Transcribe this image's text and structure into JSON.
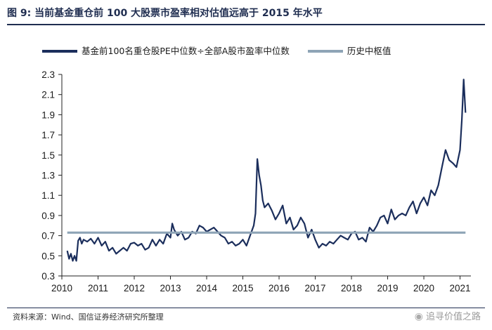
{
  "figure": {
    "title": "图  9:  当前基金重仓前 100 大股票市盈率相对估值远高于 2015 年水平",
    "source": "资料来源：Wind、国信证券经济研究所整理",
    "watermark": "追寻价值之路"
  },
  "chart_data": {
    "type": "line",
    "title": "图  9:  当前基金重仓前 100 大股票市盈率相对估值远高于 2015 年水平",
    "xlabel": "",
    "ylabel": "",
    "xlim": [
      2010,
      2021.3
    ],
    "ylim": [
      0.3,
      2.3
    ],
    "x_ticks": [
      "2010",
      "2011",
      "2012",
      "2013",
      "2014",
      "2015",
      "2016",
      "2017",
      "2018",
      "2019",
      "2020",
      "2021"
    ],
    "y_ticks": [
      "0.3",
      "0.5",
      "0.7",
      "0.9",
      "1.1",
      "1.3",
      "1.5",
      "1.7",
      "1.9",
      "2.1",
      "2.3"
    ],
    "grid": false,
    "legend_position": "top",
    "colors": {
      "ratio": "#1b2e5c",
      "median": "#8ea4b6"
    },
    "series": [
      {
        "name": "基金前100名重仓股PE中位数÷全部A股市盈率中位数",
        "x": [
          2010.15,
          2010.2,
          2010.25,
          2010.3,
          2010.35,
          2010.4,
          2010.45,
          2010.5,
          2010.55,
          2010.6,
          2010.7,
          2010.8,
          2010.9,
          2011.0,
          2011.1,
          2011.2,
          2011.3,
          2011.4,
          2011.5,
          2011.6,
          2011.7,
          2011.8,
          2011.9,
          2012.0,
          2012.1,
          2012.2,
          2012.3,
          2012.4,
          2012.5,
          2012.6,
          2012.7,
          2012.8,
          2012.9,
          2013.0,
          2013.05,
          2013.1,
          2013.2,
          2013.3,
          2013.4,
          2013.5,
          2013.6,
          2013.7,
          2013.8,
          2013.9,
          2014.0,
          2014.1,
          2014.2,
          2014.3,
          2014.4,
          2014.5,
          2014.6,
          2014.7,
          2014.8,
          2014.9,
          2015.0,
          2015.1,
          2015.2,
          2015.3,
          2015.35,
          2015.4,
          2015.45,
          2015.5,
          2015.55,
          2015.6,
          2015.7,
          2015.8,
          2015.9,
          2016.0,
          2016.1,
          2016.2,
          2016.3,
          2016.4,
          2016.5,
          2016.6,
          2016.7,
          2016.8,
          2016.9,
          2017.0,
          2017.1,
          2017.2,
          2017.3,
          2017.4,
          2017.5,
          2017.6,
          2017.7,
          2017.8,
          2017.9,
          2018.0,
          2018.1,
          2018.2,
          2018.3,
          2018.4,
          2018.5,
          2018.6,
          2018.7,
          2018.8,
          2018.9,
          2019.0,
          2019.1,
          2019.2,
          2019.3,
          2019.4,
          2019.5,
          2019.6,
          2019.7,
          2019.8,
          2019.9,
          2020.0,
          2020.1,
          2020.2,
          2020.3,
          2020.4,
          2020.5,
          2020.6,
          2020.7,
          2020.8,
          2020.9,
          2021.0,
          2021.05,
          2021.1,
          2021.15
        ],
        "values": [
          0.55,
          0.47,
          0.52,
          0.45,
          0.5,
          0.45,
          0.65,
          0.68,
          0.62,
          0.66,
          0.64,
          0.67,
          0.62,
          0.68,
          0.6,
          0.64,
          0.55,
          0.58,
          0.52,
          0.55,
          0.58,
          0.55,
          0.62,
          0.63,
          0.6,
          0.62,
          0.56,
          0.58,
          0.66,
          0.6,
          0.66,
          0.62,
          0.72,
          0.68,
          0.82,
          0.76,
          0.7,
          0.74,
          0.66,
          0.68,
          0.74,
          0.72,
          0.8,
          0.78,
          0.74,
          0.76,
          0.78,
          0.74,
          0.7,
          0.68,
          0.62,
          0.64,
          0.6,
          0.62,
          0.66,
          0.6,
          0.7,
          0.8,
          0.92,
          1.46,
          1.3,
          1.2,
          1.05,
          0.98,
          1.02,
          0.95,
          0.86,
          0.92,
          1.0,
          0.82,
          0.88,
          0.76,
          0.8,
          0.88,
          0.82,
          0.68,
          0.76,
          0.66,
          0.58,
          0.62,
          0.6,
          0.64,
          0.62,
          0.66,
          0.7,
          0.68,
          0.66,
          0.72,
          0.74,
          0.66,
          0.68,
          0.64,
          0.78,
          0.74,
          0.8,
          0.88,
          0.9,
          0.82,
          0.96,
          0.86,
          0.9,
          0.92,
          0.9,
          0.98,
          1.04,
          0.92,
          1.02,
          1.08,
          1.0,
          1.15,
          1.1,
          1.2,
          1.38,
          1.55,
          1.45,
          1.42,
          1.38,
          1.55,
          1.85,
          2.25,
          1.92
        ]
      },
      {
        "name": "历史中枢值",
        "x": [
          2010.15,
          2021.15
        ],
        "values": [
          0.73,
          0.73
        ]
      }
    ]
  }
}
